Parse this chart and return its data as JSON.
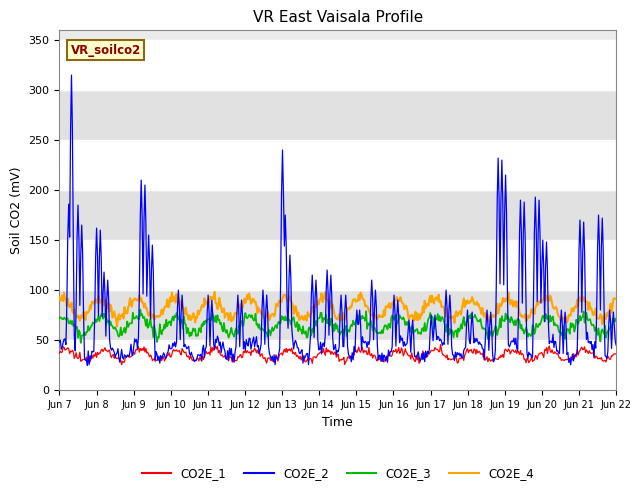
{
  "title": "VR East Vaisala Profile",
  "xlabel": "Time",
  "ylabel": "Soil CO2 (mV)",
  "ylim": [
    0,
    360
  ],
  "yticks": [
    0,
    50,
    100,
    150,
    200,
    250,
    300,
    350
  ],
  "annotation_text": "VR_soilco2",
  "series_colors": {
    "CO2E_1": "#ff0000",
    "CO2E_2": "#0000ff",
    "CO2E_3": "#00bb00",
    "CO2E_4": "#ffa500"
  },
  "x_tick_labels": [
    "Jun 7",
    "Jun 8",
    "Jun 9",
    "Jun 10",
    "Jun 11",
    "Jun 12",
    "Jun 13",
    "Jun 14",
    "Jun 15",
    "Jun 16",
    "Jun 17",
    "Jun 18",
    "Jun 19",
    "Jun 20",
    "Jun 21",
    "Jun 22"
  ],
  "plot_bg_color": "#ebebeb",
  "band_colors": [
    "#ffffff",
    "#d8d8d8"
  ],
  "legend_labels": [
    "CO2E_1",
    "CO2E_2",
    "CO2E_3",
    "CO2E_4"
  ]
}
